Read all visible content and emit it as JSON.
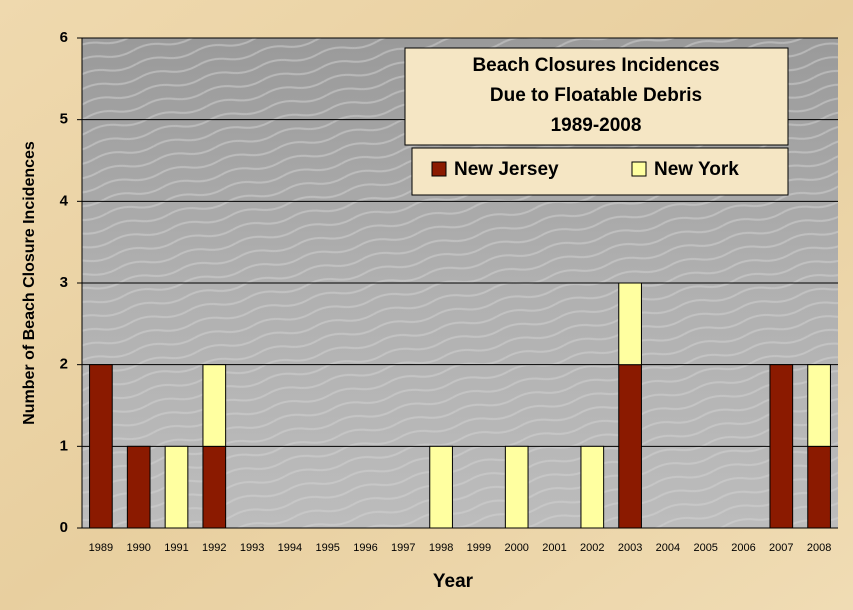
{
  "chart_data": {
    "type": "stacked_bar",
    "title": [
      "Beach Closures Incidences",
      "Due to Floatable Debris",
      "1989-2008"
    ],
    "xlabel": "Year",
    "ylabel": "Number of Beach Closure Incidences",
    "categories": [
      "1989",
      "1990",
      "1991",
      "1992",
      "1993",
      "1994",
      "1995",
      "1996",
      "1997",
      "1998",
      "1999",
      "2000",
      "2001",
      "2002",
      "2003",
      "2004",
      "2005",
      "2006",
      "2007",
      "2008"
    ],
    "series": [
      {
        "name": "New Jersey",
        "color": "#8b1a00",
        "values": [
          2,
          1,
          0,
          1,
          0,
          0,
          0,
          0,
          0,
          0,
          0,
          0,
          0,
          0,
          2,
          0,
          0,
          0,
          2,
          1
        ]
      },
      {
        "name": "New York",
        "color": "#ffffa0",
        "values": [
          0,
          0,
          1,
          1,
          0,
          0,
          0,
          0,
          0,
          1,
          0,
          1,
          0,
          1,
          1,
          0,
          0,
          0,
          0,
          1
        ]
      }
    ],
    "ylim": [
      0,
      6
    ],
    "yticks": [
      0,
      1,
      2,
      3,
      4,
      5,
      6
    ],
    "grid": true
  }
}
